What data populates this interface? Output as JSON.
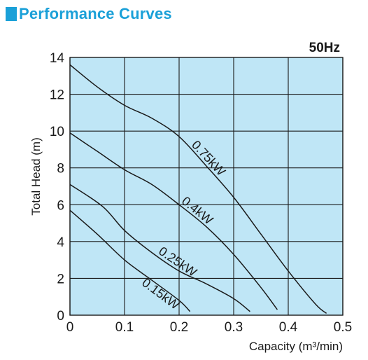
{
  "header": {
    "title": "Performance Curves"
  },
  "colors": {
    "accent": "#1aa0d8",
    "plot_bg": "#bfe6f6",
    "line": "#1a1a1a"
  },
  "chart_data": {
    "type": "line",
    "title": "Performance Curves",
    "annotation": "50Hz",
    "xlabel": "Capacity (m³/min)",
    "ylabel": "Total Head (m)",
    "xlim": [
      0,
      0.5
    ],
    "ylim": [
      0,
      14
    ],
    "xticks": [
      "0",
      "0.1",
      "0.2",
      "0.3",
      "0.4",
      "0.5"
    ],
    "yticks": [
      "0",
      "2",
      "4",
      "6",
      "8",
      "10",
      "12",
      "14"
    ],
    "grid": true,
    "series": [
      {
        "name": "0.75kW",
        "x": [
          0,
          0.05,
          0.1,
          0.15,
          0.2,
          0.25,
          0.3,
          0.35,
          0.4,
          0.45,
          0.47
        ],
        "y": [
          13.6,
          12.4,
          11.4,
          10.7,
          9.7,
          8.1,
          6.4,
          4.4,
          2.4,
          0.6,
          0.1
        ]
      },
      {
        "name": "0.4kW",
        "x": [
          0,
          0.05,
          0.1,
          0.15,
          0.2,
          0.25,
          0.3,
          0.35,
          0.38
        ],
        "y": [
          9.9,
          8.9,
          7.9,
          7.1,
          6.0,
          4.8,
          3.3,
          1.5,
          0.3
        ]
      },
      {
        "name": "0.25kW",
        "x": [
          0,
          0.06,
          0.1,
          0.15,
          0.2,
          0.25,
          0.3,
          0.33
        ],
        "y": [
          7.1,
          5.9,
          4.6,
          3.4,
          2.4,
          1.7,
          0.9,
          0.2
        ]
      },
      {
        "name": "0.15kW",
        "x": [
          0,
          0.05,
          0.1,
          0.15,
          0.2,
          0.22
        ],
        "y": [
          5.7,
          4.4,
          3.0,
          1.9,
          0.8,
          0.2
        ]
      }
    ],
    "labels": [
      {
        "text": "0.75kW",
        "series": "0.75kW"
      },
      {
        "text": "0.4kW",
        "series": "0.4kW"
      },
      {
        "text": "0.25kW",
        "series": "0.25kW"
      },
      {
        "text": "0.15kW",
        "series": "0.15kW"
      }
    ]
  }
}
